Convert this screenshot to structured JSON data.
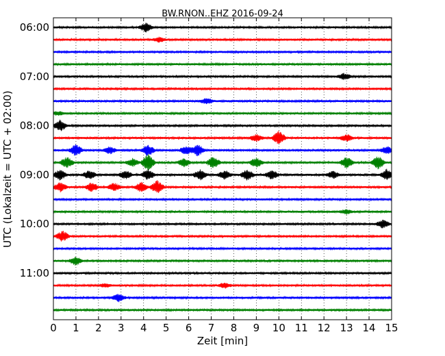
{
  "chart_data": {
    "type": "line",
    "title": "BW.RNON..EHZ 2016-09-24",
    "xlabel": "Zeit  [min]",
    "ylabel": "UTC (Lokalzeit = UTC + 02:00)",
    "xlim": [
      0,
      15
    ],
    "x_ticks": [
      "0",
      "1",
      "2",
      "3",
      "4",
      "5",
      "6",
      "7",
      "8",
      "9",
      "10",
      "11",
      "12",
      "13",
      "14",
      "15"
    ],
    "y_ticks": [
      {
        "label": "06:00",
        "trace": 0
      },
      {
        "label": "07:00",
        "trace": 4
      },
      {
        "label": "08:00",
        "trace": 8
      },
      {
        "label": "09:00",
        "trace": 12
      },
      {
        "label": "10:00",
        "trace": 16
      },
      {
        "label": "11:00",
        "trace": 20
      }
    ],
    "vertical_grid": "dotted, every 1 min",
    "trace_interval_minutes": 15,
    "colors": [
      "#000000",
      "#ff0000",
      "#0000ff",
      "#008000"
    ],
    "series": [
      {
        "start": "06:00",
        "color": "#000000",
        "events": [
          [
            4.1,
            1.0
          ]
        ]
      },
      {
        "start": "06:15",
        "color": "#ff0000",
        "events": [
          [
            4.7,
            0.5
          ]
        ]
      },
      {
        "start": "06:30",
        "color": "#0000ff",
        "events": []
      },
      {
        "start": "06:45",
        "color": "#008000",
        "events": []
      },
      {
        "start": "07:00",
        "color": "#000000",
        "events": [
          [
            12.9,
            0.7
          ]
        ]
      },
      {
        "start": "07:15",
        "color": "#ff0000",
        "events": []
      },
      {
        "start": "07:30",
        "color": "#0000ff",
        "events": [
          [
            6.8,
            0.7
          ]
        ]
      },
      {
        "start": "07:45",
        "color": "#008000",
        "events": [
          [
            0.2,
            0.4
          ]
        ]
      },
      {
        "start": "08:00",
        "color": "#000000",
        "events": [
          [
            0.3,
            1.3
          ]
        ]
      },
      {
        "start": "08:15",
        "color": "#ff0000",
        "events": [
          [
            9.0,
            0.8
          ],
          [
            10.0,
            1.6
          ],
          [
            13.0,
            0.8
          ]
        ]
      },
      {
        "start": "08:30",
        "color": "#0000ff",
        "events": [
          [
            1.0,
            1.3
          ],
          [
            2.5,
            0.8
          ],
          [
            4.2,
            1.3
          ],
          [
            5.9,
            1.0
          ],
          [
            6.4,
            1.3
          ],
          [
            14.8,
            0.9
          ]
        ]
      },
      {
        "start": "08:45",
        "color": "#008000",
        "events": [
          [
            0.6,
            1.3
          ],
          [
            3.5,
            0.9
          ],
          [
            4.2,
            2.0
          ],
          [
            5.8,
            0.9
          ],
          [
            7.1,
            1.4
          ],
          [
            9.0,
            1.1
          ],
          [
            13.0,
            1.3
          ],
          [
            14.4,
            1.5
          ]
        ]
      },
      {
        "start": "09:00",
        "color": "#000000",
        "events": [
          [
            0.3,
            1.2
          ],
          [
            1.6,
            1.0
          ],
          [
            3.2,
            1.0
          ],
          [
            4.2,
            1.2
          ],
          [
            6.5,
            1.2
          ],
          [
            7.6,
            1.0
          ],
          [
            8.6,
            1.2
          ],
          [
            9.7,
            1.0
          ],
          [
            12.4,
            0.8
          ],
          [
            14.8,
            1.3
          ]
        ]
      },
      {
        "start": "09:15",
        "color": "#ff0000",
        "events": [
          [
            0.3,
            1.1
          ],
          [
            1.7,
            1.0
          ],
          [
            2.7,
            0.9
          ],
          [
            3.9,
            1.1
          ],
          [
            4.6,
            1.5
          ]
        ]
      },
      {
        "start": "09:30",
        "color": "#0000ff",
        "events": []
      },
      {
        "start": "09:45",
        "color": "#008000",
        "events": [
          [
            13.0,
            0.5
          ]
        ]
      },
      {
        "start": "10:00",
        "color": "#000000",
        "events": [
          [
            14.6,
            0.9
          ]
        ]
      },
      {
        "start": "10:15",
        "color": "#ff0000",
        "events": [
          [
            0.4,
            1.2
          ]
        ]
      },
      {
        "start": "10:30",
        "color": "#0000ff",
        "events": []
      },
      {
        "start": "10:45",
        "color": "#008000",
        "events": [
          [
            1.0,
            1.0
          ]
        ]
      },
      {
        "start": "11:00",
        "color": "#000000",
        "events": []
      },
      {
        "start": "11:15",
        "color": "#ff0000",
        "events": [
          [
            7.6,
            0.6
          ],
          [
            2.3,
            0.4
          ]
        ]
      },
      {
        "start": "11:30",
        "color": "#0000ff",
        "events": [
          [
            2.9,
            0.9
          ]
        ]
      },
      {
        "start": "11:45",
        "color": "#008000",
        "events": []
      }
    ]
  }
}
